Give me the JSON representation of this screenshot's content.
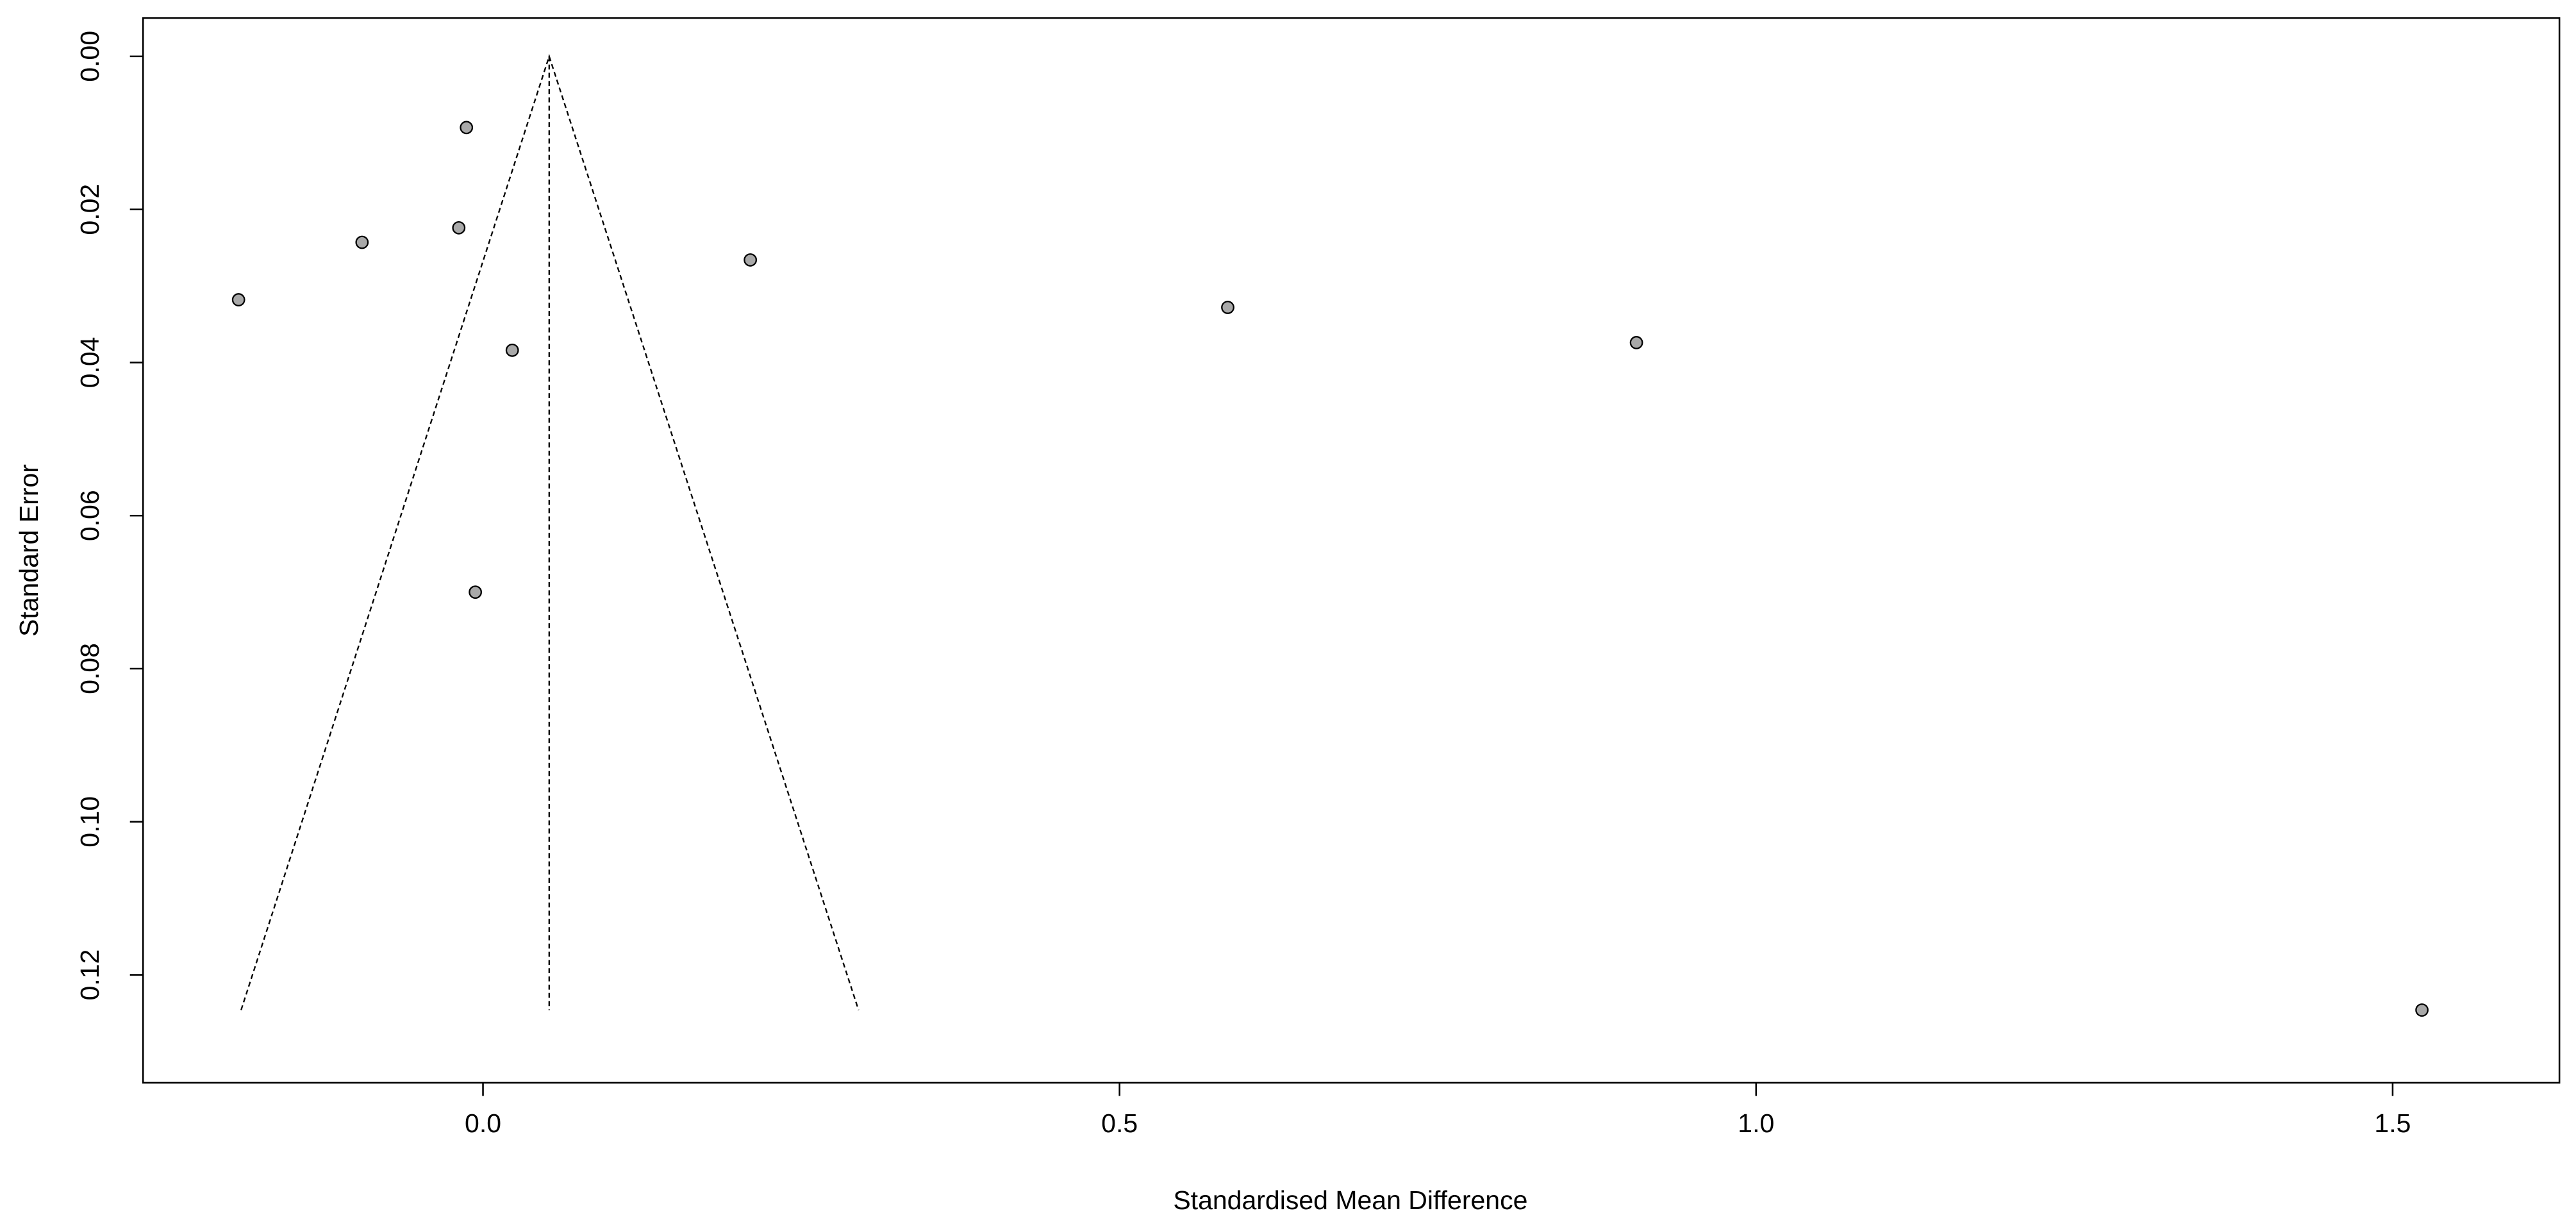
{
  "chart_data": {
    "type": "scatter",
    "x_label": "Standardised Mean Difference",
    "y_label": "Standard Error",
    "x": [
      -0.013,
      -0.095,
      -0.019,
      -0.192,
      0.21,
      0.023,
      -0.006,
      0.585,
      0.906,
      1.523
    ],
    "values": [
      0.0093,
      0.0243,
      0.0224,
      0.0318,
      0.0266,
      0.0384,
      0.07,
      0.0328,
      0.0374,
      0.1246
    ],
    "color": "#a9a9a9",
    "xlim": [
      -0.267,
      1.631
    ],
    "ylim": [
      -0.005,
      0.1341
    ],
    "y_reversed": true,
    "xticks": [
      {
        "value": 0,
        "label": "0.0"
      },
      {
        "value": 0.5,
        "label": "0.5"
      },
      {
        "value": 1,
        "label": "1.0"
      },
      {
        "value": 1.5,
        "label": "1.5"
      }
    ],
    "yticks": [
      {
        "value": 0,
        "label": "0.00"
      },
      {
        "value": 0.02,
        "label": "0.02"
      },
      {
        "value": 0.04,
        "label": "0.04"
      },
      {
        "value": 0.06,
        "label": "0.06"
      },
      {
        "value": 0.08,
        "label": "0.08"
      },
      {
        "value": 0.1,
        "label": "0.10"
      },
      {
        "value": 0.12,
        "label": "0.12"
      }
    ],
    "funnel": {
      "x": [
        -0.19,
        0.052,
        0.295
      ],
      "y": [
        0.1246,
        0,
        0.1246
      ]
    },
    "center_line": {
      "x": [
        0.052,
        0.052
      ],
      "y": [
        0,
        0.1246
      ]
    }
  }
}
